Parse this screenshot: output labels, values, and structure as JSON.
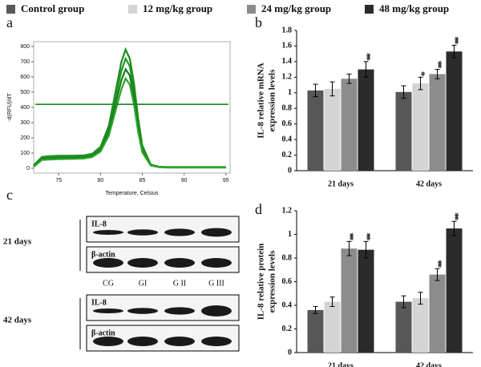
{
  "chart_data": [
    {
      "panel": "a",
      "type": "line",
      "x_label": "Temperature, Celsius",
      "y_label": "-d(RFU)/dT",
      "x": [
        72,
        73,
        74,
        75,
        76,
        77,
        78,
        79,
        80,
        81,
        82,
        82.5,
        83,
        83.5,
        84,
        84.5,
        85,
        86,
        87,
        88,
        90,
        92,
        95
      ],
      "series": [
        {
          "color": "#1a8a1a",
          "values": [
            20,
            75,
            80,
            82,
            82,
            83,
            85,
            95,
            140,
            280,
            560,
            700,
            780,
            720,
            560,
            330,
            150,
            25,
            10,
            8,
            8,
            8,
            8
          ]
        },
        {
          "color": "#23962a",
          "values": [
            15,
            70,
            74,
            76,
            77,
            78,
            80,
            90,
            130,
            260,
            520,
            640,
            720,
            670,
            520,
            300,
            135,
            22,
            9,
            7,
            7,
            7,
            7
          ]
        },
        {
          "color": "#148014",
          "values": [
            12,
            62,
            66,
            68,
            69,
            70,
            72,
            82,
            120,
            240,
            470,
            580,
            650,
            610,
            470,
            270,
            120,
            20,
            8,
            6,
            6,
            6,
            6
          ]
        },
        {
          "color": "#2ea52e",
          "values": [
            10,
            55,
            58,
            60,
            61,
            62,
            64,
            74,
            110,
            215,
            420,
            520,
            590,
            550,
            420,
            240,
            105,
            18,
            7,
            5,
            5,
            5,
            5
          ]
        }
      ],
      "threshold": 420,
      "xlim": [
        72,
        95.5
      ],
      "xticks": [
        75,
        80,
        85,
        90,
        95
      ],
      "ylim": [
        0,
        800
      ],
      "yticks": [
        0,
        100,
        200,
        300,
        400,
        500,
        600,
        700,
        800
      ]
    },
    {
      "panel": "b",
      "type": "bar",
      "y_label": [
        "IL-8 relative mRNA",
        "expression levels"
      ],
      "categories": [
        "21 days",
        "42 days"
      ],
      "series": [
        {
          "name": "Control group",
          "color": "#575757",
          "values": [
            1.03,
            1.01
          ],
          "errors": [
            0.08,
            0.08
          ],
          "stars": [
            null,
            null
          ]
        },
        {
          "name": "12 mg/kg group",
          "color": "#d4d4d4",
          "values": [
            1.05,
            1.12
          ],
          "errors": [
            0.09,
            0.08
          ],
          "stars": [
            null,
            "*"
          ]
        },
        {
          "name": "24 mg/kg group",
          "color": "#8c8c8c",
          "values": [
            1.18,
            1.24
          ],
          "errors": [
            0.06,
            0.06
          ],
          "stars": [
            null,
            "**"
          ]
        },
        {
          "name": "48 mg/kg group",
          "color": "#2b2b2b",
          "values": [
            1.3,
            1.53
          ],
          "errors": [
            0.1,
            0.08
          ],
          "stars": [
            "**",
            "**"
          ]
        }
      ],
      "ylim": [
        0,
        1.8
      ],
      "yticks": [
        0,
        0.2,
        0.4,
        0.6,
        0.8,
        1,
        1.2,
        1.4,
        1.6,
        1.8
      ]
    },
    {
      "panel": "d",
      "type": "bar",
      "y_label": [
        "IL-8 relative protein",
        "expression levels"
      ],
      "categories": [
        "21 days",
        "42 days"
      ],
      "series": [
        {
          "color": "#575757",
          "values": [
            0.36,
            0.43
          ],
          "errors": [
            0.03,
            0.05
          ],
          "stars": [
            null,
            null
          ]
        },
        {
          "color": "#d4d4d4",
          "values": [
            0.43,
            0.46
          ],
          "errors": [
            0.04,
            0.05
          ],
          "stars": [
            null,
            null
          ]
        },
        {
          "color": "#8c8c8c",
          "values": [
            0.88,
            0.66
          ],
          "errors": [
            0.06,
            0.05
          ],
          "stars": [
            "**",
            "**"
          ]
        },
        {
          "color": "#2b2b2b",
          "values": [
            0.87,
            1.05
          ],
          "errors": [
            0.07,
            0.06
          ],
          "stars": [
            "**",
            "**"
          ]
        }
      ],
      "ylim": [
        0,
        1.2
      ],
      "yticks": [
        0,
        0.2,
        0.4,
        0.6,
        0.8,
        1,
        1.2
      ]
    }
  ],
  "blot": {
    "panel": "c",
    "lanes": [
      "CG",
      "GI",
      "G II",
      "G III"
    ],
    "groups": [
      {
        "label": "21 days",
        "rows": [
          "IL-8",
          "β-actin"
        ]
      },
      {
        "label": "42 days",
        "rows": [
          "IL-8",
          "β-actin"
        ]
      }
    ]
  }
}
